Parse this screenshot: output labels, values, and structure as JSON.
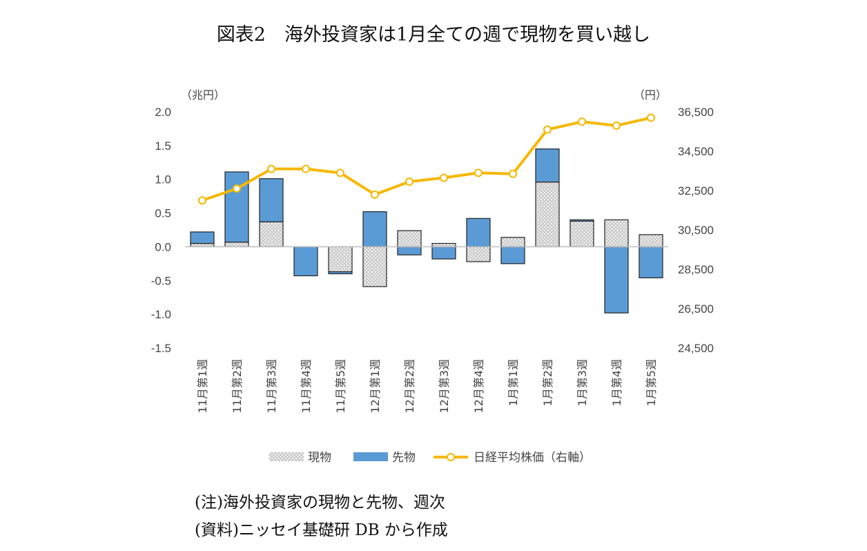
{
  "title": "図表2　海外投資家は1月全ての週で現物を買い越し",
  "notes": [
    "(注)海外投資家の現物と先物、週次",
    "(資料)ニッセイ基礎研 DB から作成"
  ],
  "colors": {
    "genbutsu_fill": "#c8c8c8",
    "sakimono_fill": "#5b9bd5",
    "line": "#f5b800",
    "marker_fill": "#ffffff",
    "axis": "#bfbfbf"
  },
  "chart_data": {
    "type": "bar",
    "stacked": true,
    "y_left_label": "（兆円）",
    "y_right_label": "（円）",
    "y_left_lim": [
      -1.5,
      2.0
    ],
    "y_left_ticks": [
      "2.0",
      "1.5",
      "1.0",
      "0.5",
      "0.0",
      "-0.5",
      "-1.0",
      "-1.5"
    ],
    "y_right_lim": [
      24500,
      36500
    ],
    "y_right_ticks": [
      "36,500",
      "34,500",
      "32,500",
      "30,500",
      "28,500",
      "26,500",
      "24,500"
    ],
    "categories": [
      "11月第1週",
      "11月第2週",
      "11月第3週",
      "11月第4週",
      "11月第5週",
      "12月第1週",
      "12月第2週",
      "12月第3週",
      "12月第4週",
      "1月第1週",
      "1月第2週",
      "1月第3週",
      "1月第4週",
      "1月第5週"
    ],
    "series": [
      {
        "name": "現物",
        "kind": "bar",
        "values": [
          0.05,
          0.07,
          0.37,
          0.0,
          -0.37,
          -0.59,
          0.24,
          0.05,
          -0.22,
          0.14,
          0.96,
          0.38,
          0.4,
          0.18
        ]
      },
      {
        "name": "先物",
        "kind": "bar",
        "values": [
          0.17,
          1.04,
          0.64,
          -0.43,
          -0.03,
          0.52,
          -0.12,
          -0.18,
          0.42,
          -0.25,
          0.49,
          0.02,
          -0.98,
          -0.46
        ]
      },
      {
        "name": "日経平均株価（右軸）",
        "kind": "line",
        "axis": "right",
        "values": [
          32000,
          32600,
          33600,
          33600,
          33400,
          32300,
          32950,
          33150,
          33400,
          33350,
          35600,
          36000,
          35800,
          36200
        ]
      }
    ],
    "legend_position": "bottom",
    "grid": false
  }
}
